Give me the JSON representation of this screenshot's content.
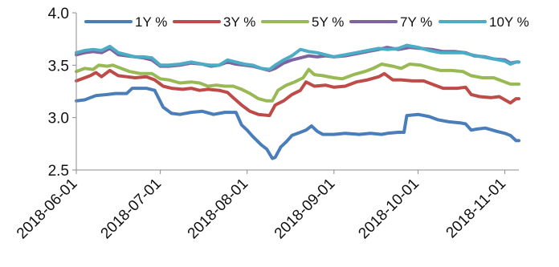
{
  "chart_data": {
    "type": "line",
    "title": "",
    "xlabel": "",
    "ylabel": "",
    "ylim": [
      2.5,
      4.0
    ],
    "xlim": [
      "2018-06-01",
      "2018-11-06"
    ],
    "y_ticks": [
      "2.5",
      "3.0",
      "3.5",
      "4.0"
    ],
    "x_ticks": [
      "2018-06-01",
      "2018-07-01",
      "2018-08-01",
      "2018-09-01",
      "2018-10-01",
      "2018-11-01"
    ],
    "grid": false,
    "legend_position": "top",
    "series": [
      {
        "name": "1Y %",
        "color": "#4a7ebb",
        "points": [
          [
            "2018-06-01",
            3.16
          ],
          [
            "2018-06-04",
            3.17
          ],
          [
            "2018-06-06",
            3.19
          ],
          [
            "2018-06-08",
            3.21
          ],
          [
            "2018-06-12",
            3.22
          ],
          [
            "2018-06-15",
            3.23
          ],
          [
            "2018-06-19",
            3.23
          ],
          [
            "2018-06-21",
            3.28
          ],
          [
            "2018-06-26",
            3.28
          ],
          [
            "2018-06-29",
            3.26
          ],
          [
            "2018-07-02",
            3.1
          ],
          [
            "2018-07-05",
            3.04
          ],
          [
            "2018-07-08",
            3.03
          ],
          [
            "2018-07-12",
            3.05
          ],
          [
            "2018-07-16",
            3.06
          ],
          [
            "2018-07-20",
            3.03
          ],
          [
            "2018-07-24",
            3.05
          ],
          [
            "2018-07-28",
            3.05
          ],
          [
            "2018-07-30",
            2.93
          ],
          [
            "2018-08-01",
            2.88
          ],
          [
            "2018-08-03",
            2.82
          ],
          [
            "2018-08-06",
            2.74
          ],
          [
            "2018-08-08",
            2.7
          ],
          [
            "2018-08-10",
            2.61
          ],
          [
            "2018-08-11",
            2.62
          ],
          [
            "2018-08-13",
            2.72
          ],
          [
            "2018-08-15",
            2.77
          ],
          [
            "2018-08-17",
            2.83
          ],
          [
            "2018-08-20",
            2.86
          ],
          [
            "2018-08-22",
            2.88
          ],
          [
            "2018-08-24",
            2.92
          ],
          [
            "2018-08-26",
            2.87
          ],
          [
            "2018-08-28",
            2.84
          ],
          [
            "2018-09-01",
            2.84
          ],
          [
            "2018-09-05",
            2.85
          ],
          [
            "2018-09-10",
            2.84
          ],
          [
            "2018-09-14",
            2.85
          ],
          [
            "2018-09-18",
            2.84
          ],
          [
            "2018-09-20",
            2.85
          ],
          [
            "2018-09-24",
            2.86
          ],
          [
            "2018-09-26",
            2.86
          ],
          [
            "2018-09-27",
            3.02
          ],
          [
            "2018-10-01",
            3.03
          ],
          [
            "2018-10-05",
            3.01
          ],
          [
            "2018-10-08",
            2.98
          ],
          [
            "2018-10-12",
            2.96
          ],
          [
            "2018-10-16",
            2.95
          ],
          [
            "2018-10-18",
            2.94
          ],
          [
            "2018-10-20",
            2.88
          ],
          [
            "2018-10-22",
            2.89
          ],
          [
            "2018-10-25",
            2.9
          ],
          [
            "2018-10-29",
            2.87
          ],
          [
            "2018-11-01",
            2.85
          ],
          [
            "2018-11-02",
            2.84
          ],
          [
            "2018-11-03",
            2.83
          ],
          [
            "2018-11-05",
            2.78
          ],
          [
            "2018-11-06",
            2.78
          ]
        ]
      },
      {
        "name": "3Y %",
        "color": "#be4b48",
        "points": [
          [
            "2018-06-01",
            3.35
          ],
          [
            "2018-06-04",
            3.38
          ],
          [
            "2018-06-06",
            3.4
          ],
          [
            "2018-06-08",
            3.43
          ],
          [
            "2018-06-10",
            3.39
          ],
          [
            "2018-06-13",
            3.45
          ],
          [
            "2018-06-16",
            3.4
          ],
          [
            "2018-06-19",
            3.39
          ],
          [
            "2018-06-22",
            3.38
          ],
          [
            "2018-06-26",
            3.39
          ],
          [
            "2018-06-29",
            3.36
          ],
          [
            "2018-07-02",
            3.3
          ],
          [
            "2018-07-05",
            3.28
          ],
          [
            "2018-07-09",
            3.27
          ],
          [
            "2018-07-12",
            3.28
          ],
          [
            "2018-07-15",
            3.26
          ],
          [
            "2018-07-18",
            3.27
          ],
          [
            "2018-07-22",
            3.26
          ],
          [
            "2018-07-25",
            3.24
          ],
          [
            "2018-07-27",
            3.19
          ],
          [
            "2018-07-30",
            3.12
          ],
          [
            "2018-08-02",
            3.06
          ],
          [
            "2018-08-05",
            3.03
          ],
          [
            "2018-08-09",
            3.02
          ],
          [
            "2018-08-11",
            3.12
          ],
          [
            "2018-08-14",
            3.16
          ],
          [
            "2018-08-17",
            3.22
          ],
          [
            "2018-08-20",
            3.26
          ],
          [
            "2018-08-22",
            3.34
          ],
          [
            "2018-08-25",
            3.3
          ],
          [
            "2018-08-29",
            3.31
          ],
          [
            "2018-09-01",
            3.29
          ],
          [
            "2018-09-05",
            3.3
          ],
          [
            "2018-09-09",
            3.34
          ],
          [
            "2018-09-13",
            3.36
          ],
          [
            "2018-09-17",
            3.39
          ],
          [
            "2018-09-19",
            3.42
          ],
          [
            "2018-09-22",
            3.36
          ],
          [
            "2018-09-25",
            3.36
          ],
          [
            "2018-09-29",
            3.35
          ],
          [
            "2018-10-03",
            3.35
          ],
          [
            "2018-10-07",
            3.31
          ],
          [
            "2018-10-10",
            3.28
          ],
          [
            "2018-10-15",
            3.28
          ],
          [
            "2018-10-18",
            3.29
          ],
          [
            "2018-10-20",
            3.22
          ],
          [
            "2018-10-23",
            3.2
          ],
          [
            "2018-10-27",
            3.19
          ],
          [
            "2018-10-30",
            3.2
          ],
          [
            "2018-11-01",
            3.17
          ],
          [
            "2018-11-03",
            3.14
          ],
          [
            "2018-11-05",
            3.18
          ],
          [
            "2018-11-06",
            3.18
          ]
        ]
      },
      {
        "name": "5Y %",
        "color": "#98b954",
        "points": [
          [
            "2018-06-01",
            3.44
          ],
          [
            "2018-06-04",
            3.47
          ],
          [
            "2018-06-07",
            3.46
          ],
          [
            "2018-06-09",
            3.5
          ],
          [
            "2018-06-12",
            3.49
          ],
          [
            "2018-06-14",
            3.5
          ],
          [
            "2018-06-17",
            3.47
          ],
          [
            "2018-06-20",
            3.44
          ],
          [
            "2018-06-24",
            3.42
          ],
          [
            "2018-06-28",
            3.42
          ],
          [
            "2018-07-01",
            3.37
          ],
          [
            "2018-07-04",
            3.36
          ],
          [
            "2018-07-08",
            3.33
          ],
          [
            "2018-07-12",
            3.34
          ],
          [
            "2018-07-15",
            3.33
          ],
          [
            "2018-07-18",
            3.3
          ],
          [
            "2018-07-21",
            3.31
          ],
          [
            "2018-07-24",
            3.3
          ],
          [
            "2018-07-27",
            3.3
          ],
          [
            "2018-07-30",
            3.27
          ],
          [
            "2018-08-02",
            3.23
          ],
          [
            "2018-08-05",
            3.18
          ],
          [
            "2018-08-08",
            3.16
          ],
          [
            "2018-08-10",
            3.16
          ],
          [
            "2018-08-12",
            3.26
          ],
          [
            "2018-08-15",
            3.31
          ],
          [
            "2018-08-18",
            3.34
          ],
          [
            "2018-08-21",
            3.38
          ],
          [
            "2018-08-23",
            3.46
          ],
          [
            "2018-08-25",
            3.41
          ],
          [
            "2018-08-28",
            3.4
          ],
          [
            "2018-09-01",
            3.38
          ],
          [
            "2018-09-04",
            3.37
          ],
          [
            "2018-09-08",
            3.41
          ],
          [
            "2018-09-12",
            3.44
          ],
          [
            "2018-09-15",
            3.47
          ],
          [
            "2018-09-18",
            3.51
          ],
          [
            "2018-09-22",
            3.49
          ],
          [
            "2018-09-25",
            3.47
          ],
          [
            "2018-09-28",
            3.51
          ],
          [
            "2018-10-02",
            3.5
          ],
          [
            "2018-10-06",
            3.47
          ],
          [
            "2018-10-09",
            3.45
          ],
          [
            "2018-10-13",
            3.45
          ],
          [
            "2018-10-17",
            3.44
          ],
          [
            "2018-10-20",
            3.4
          ],
          [
            "2018-10-24",
            3.38
          ],
          [
            "2018-10-28",
            3.38
          ],
          [
            "2018-11-01",
            3.34
          ],
          [
            "2018-11-03",
            3.32
          ],
          [
            "2018-11-05",
            3.32
          ],
          [
            "2018-11-06",
            3.32
          ]
        ]
      },
      {
        "name": "7Y %",
        "color": "#7e63a1",
        "points": [
          [
            "2018-06-01",
            3.6
          ],
          [
            "2018-06-04",
            3.62
          ],
          [
            "2018-06-07",
            3.63
          ],
          [
            "2018-06-10",
            3.62
          ],
          [
            "2018-06-13",
            3.66
          ],
          [
            "2018-06-16",
            3.6
          ],
          [
            "2018-06-19",
            3.59
          ],
          [
            "2018-06-22",
            3.58
          ],
          [
            "2018-06-25",
            3.57
          ],
          [
            "2018-06-28",
            3.55
          ],
          [
            "2018-07-01",
            3.49
          ],
          [
            "2018-07-04",
            3.49
          ],
          [
            "2018-07-08",
            3.5
          ],
          [
            "2018-07-12",
            3.52
          ],
          [
            "2018-07-16",
            3.51
          ],
          [
            "2018-07-19",
            3.49
          ],
          [
            "2018-07-22",
            3.5
          ],
          [
            "2018-07-25",
            3.53
          ],
          [
            "2018-07-28",
            3.51
          ],
          [
            "2018-07-31",
            3.5
          ],
          [
            "2018-08-03",
            3.49
          ],
          [
            "2018-08-06",
            3.47
          ],
          [
            "2018-08-09",
            3.45
          ],
          [
            "2018-08-11",
            3.47
          ],
          [
            "2018-08-14",
            3.52
          ],
          [
            "2018-08-17",
            3.55
          ],
          [
            "2018-08-20",
            3.57
          ],
          [
            "2018-08-23",
            3.59
          ],
          [
            "2018-08-26",
            3.58
          ],
          [
            "2018-08-29",
            3.59
          ],
          [
            "2018-09-01",
            3.58
          ],
          [
            "2018-09-05",
            3.59
          ],
          [
            "2018-09-09",
            3.61
          ],
          [
            "2018-09-13",
            3.63
          ],
          [
            "2018-09-17",
            3.65
          ],
          [
            "2018-09-20",
            3.67
          ],
          [
            "2018-09-24",
            3.65
          ],
          [
            "2018-09-28",
            3.67
          ],
          [
            "2018-10-02",
            3.66
          ],
          [
            "2018-10-06",
            3.65
          ],
          [
            "2018-10-10",
            3.63
          ],
          [
            "2018-10-14",
            3.63
          ],
          [
            "2018-10-18",
            3.62
          ],
          [
            "2018-10-21",
            3.59
          ],
          [
            "2018-10-25",
            3.58
          ],
          [
            "2018-10-28",
            3.56
          ],
          [
            "2018-11-01",
            3.55
          ],
          [
            "2018-11-03",
            3.52
          ],
          [
            "2018-11-05",
            3.53
          ],
          [
            "2018-11-06",
            3.53
          ]
        ]
      },
      {
        "name": "10Y %",
        "color": "#4bacc6",
        "points": [
          [
            "2018-06-01",
            3.62
          ],
          [
            "2018-06-04",
            3.64
          ],
          [
            "2018-06-07",
            3.65
          ],
          [
            "2018-06-10",
            3.64
          ],
          [
            "2018-06-13",
            3.68
          ],
          [
            "2018-06-16",
            3.62
          ],
          [
            "2018-06-19",
            3.6
          ],
          [
            "2018-06-22",
            3.58
          ],
          [
            "2018-06-25",
            3.58
          ],
          [
            "2018-06-28",
            3.57
          ],
          [
            "2018-07-01",
            3.5
          ],
          [
            "2018-07-04",
            3.5
          ],
          [
            "2018-07-08",
            3.51
          ],
          [
            "2018-07-12",
            3.53
          ],
          [
            "2018-07-16",
            3.51
          ],
          [
            "2018-07-19",
            3.5
          ],
          [
            "2018-07-22",
            3.5
          ],
          [
            "2018-07-25",
            3.55
          ],
          [
            "2018-07-28",
            3.53
          ],
          [
            "2018-07-31",
            3.51
          ],
          [
            "2018-08-03",
            3.5
          ],
          [
            "2018-08-06",
            3.47
          ],
          [
            "2018-08-09",
            3.46
          ],
          [
            "2018-08-11",
            3.5
          ],
          [
            "2018-08-14",
            3.55
          ],
          [
            "2018-08-17",
            3.59
          ],
          [
            "2018-08-20",
            3.65
          ],
          [
            "2018-08-23",
            3.63
          ],
          [
            "2018-08-26",
            3.62
          ],
          [
            "2018-08-29",
            3.6
          ],
          [
            "2018-09-01",
            3.58
          ],
          [
            "2018-09-05",
            3.6
          ],
          [
            "2018-09-09",
            3.62
          ],
          [
            "2018-09-13",
            3.64
          ],
          [
            "2018-09-17",
            3.66
          ],
          [
            "2018-09-20",
            3.65
          ],
          [
            "2018-09-24",
            3.66
          ],
          [
            "2018-09-27",
            3.69
          ],
          [
            "2018-10-01",
            3.67
          ],
          [
            "2018-10-05",
            3.64
          ],
          [
            "2018-10-09",
            3.62
          ],
          [
            "2018-10-13",
            3.62
          ],
          [
            "2018-10-17",
            3.62
          ],
          [
            "2018-10-20",
            3.6
          ],
          [
            "2018-10-24",
            3.58
          ],
          [
            "2018-10-28",
            3.56
          ],
          [
            "2018-11-01",
            3.54
          ],
          [
            "2018-11-03",
            3.51
          ],
          [
            "2018-11-05",
            3.53
          ],
          [
            "2018-11-06",
            3.53
          ]
        ]
      }
    ]
  }
}
